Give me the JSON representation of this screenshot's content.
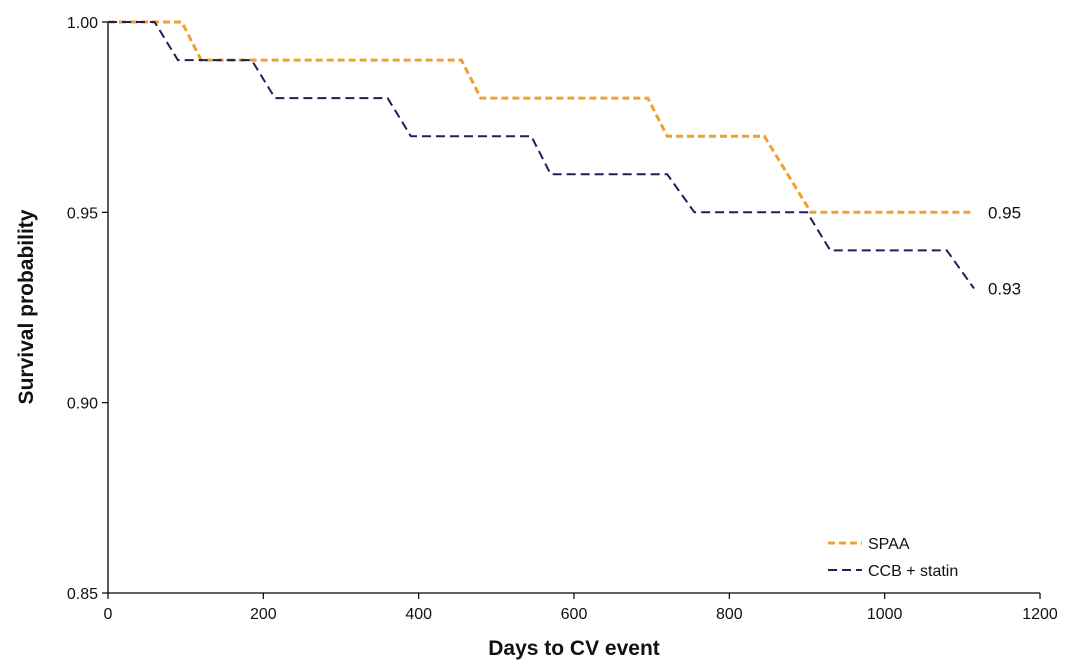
{
  "chart_data": {
    "type": "line",
    "title": "",
    "xlabel": "Days to CV event",
    "ylabel": "Survival probability",
    "xlim": [
      0,
      1200
    ],
    "ylim": [
      0.85,
      1.0
    ],
    "xticks": [
      0,
      200,
      400,
      600,
      800,
      1000,
      1200
    ],
    "yticks": [
      0.85,
      0.9,
      0.95,
      1.0
    ],
    "xtick_labels": [
      "0",
      "200",
      "400",
      "600",
      "800",
      "1000",
      "1200"
    ],
    "ytick_labels": [
      "0.85",
      "0.90",
      "0.95",
      "1.00"
    ],
    "grid": false,
    "legend_position": "bottom-right",
    "series": [
      {
        "name": "SPAA",
        "color": "#F0A030",
        "style": "dashed",
        "end_label": "0.95",
        "points": [
          [
            0,
            1.0
          ],
          [
            95,
            1.0
          ],
          [
            120,
            0.99
          ],
          [
            455,
            0.99
          ],
          [
            480,
            0.98
          ],
          [
            695,
            0.98
          ],
          [
            720,
            0.97
          ],
          [
            845,
            0.97
          ],
          [
            905,
            0.95
          ],
          [
            1115,
            0.95
          ]
        ]
      },
      {
        "name": "CCB + statin",
        "color": "#1F1F5C",
        "style": "dashed",
        "end_label": "0.93",
        "points": [
          [
            0,
            1.0
          ],
          [
            60,
            1.0
          ],
          [
            90,
            0.99
          ],
          [
            185,
            0.99
          ],
          [
            215,
            0.98
          ],
          [
            360,
            0.98
          ],
          [
            390,
            0.97
          ],
          [
            545,
            0.97
          ],
          [
            570,
            0.96
          ],
          [
            720,
            0.96
          ],
          [
            755,
            0.95
          ],
          [
            900,
            0.95
          ],
          [
            930,
            0.94
          ],
          [
            1080,
            0.94
          ],
          [
            1115,
            0.93
          ]
        ]
      }
    ]
  }
}
